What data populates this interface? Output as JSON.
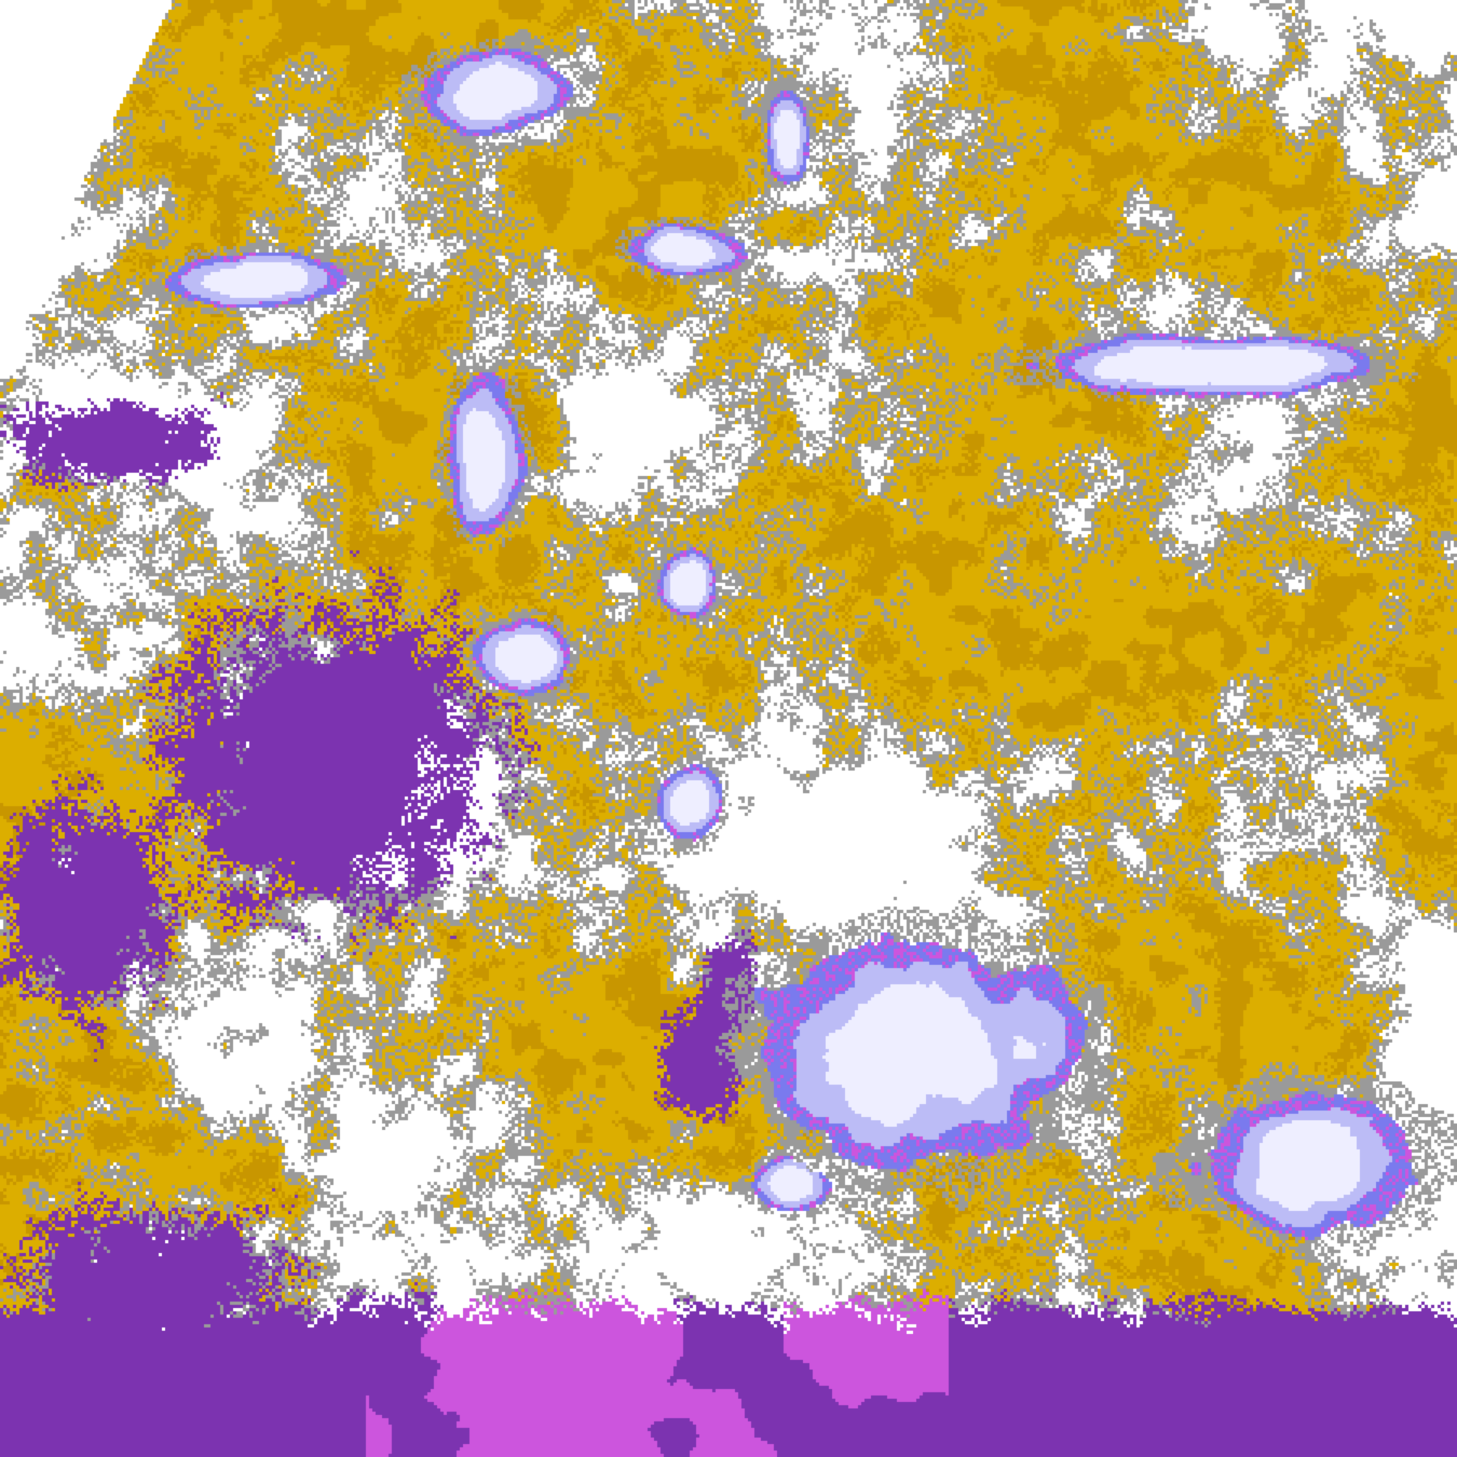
{
  "palette": {
    "background": "#ffffff",
    "gold": "#dcae00",
    "gold_dark": "#c89600",
    "purple": "#7c33b0",
    "magenta": "#cc55dd",
    "gray": "#9a9a9a",
    "periwinkle": "#7a7aee",
    "light_periwinkle": "#bcbcf6",
    "lavender": "#eeeeff"
  }
}
